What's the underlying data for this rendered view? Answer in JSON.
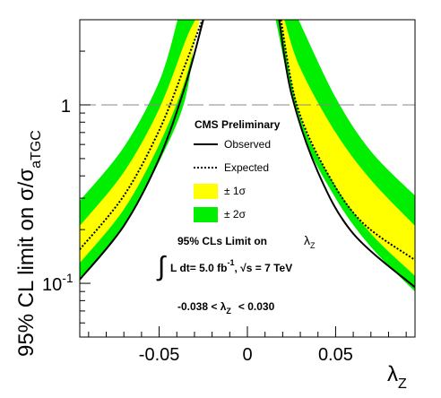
{
  "chart_data": {
    "type": "line",
    "x_axis": {
      "label_main": "λ",
      "label_sub": "Z",
      "range": [
        -0.095,
        0.095
      ],
      "ticks": [
        {
          "value": -0.05,
          "label": "-0.05"
        },
        {
          "value": 0,
          "label": "0"
        },
        {
          "value": 0.05,
          "label": "0.05"
        }
      ]
    },
    "y_axis": {
      "label_main": "95% CL limit on σ/σ",
      "label_sub": "aTGC",
      "scale": "log",
      "range": [
        0.05,
        3.0
      ],
      "ticks": [
        {
          "value": 1,
          "label": "1"
        },
        {
          "value": 0.1,
          "label_base": "10",
          "label_exp": "-1"
        }
      ]
    },
    "reference_line": {
      "y": 1,
      "style": "dashed",
      "color": "#888888"
    },
    "series": [
      {
        "name": "Observed",
        "style": "solid",
        "color": "#000000",
        "left": {
          "x": [
            -0.095,
            -0.07,
            -0.05,
            -0.035,
            -0.025
          ],
          "y": [
            0.105,
            0.21,
            0.5,
            1.3,
            3.0
          ]
        },
        "right": {
          "x": [
            0.018,
            0.025,
            0.04,
            0.06,
            0.095
          ],
          "y": [
            3.0,
            1.15,
            0.42,
            0.19,
            0.095
          ]
        }
      },
      {
        "name": "Expected",
        "style": "dashed",
        "color": "#000000",
        "left": {
          "x": [
            -0.095,
            -0.07,
            -0.05,
            -0.035,
            -0.0255
          ],
          "y": [
            0.155,
            0.31,
            0.72,
            1.7,
            3.0
          ]
        },
        "right": {
          "x": [
            0.019,
            0.028,
            0.045,
            0.065,
            0.095
          ],
          "y": [
            3.0,
            1.0,
            0.42,
            0.22,
            0.135
          ]
        }
      }
    ],
    "bands": {
      "sigma2": {
        "label": "± 2σ",
        "color": "#00ee00",
        "left": {
          "x": [
            -0.095,
            -0.07,
            -0.05,
            -0.035,
            -0.022
          ],
          "y_low": [
            0.105,
            0.21,
            0.48,
            1.1,
            3.0
          ],
          "y_high": [
            0.29,
            0.58,
            1.35,
            3.0,
            3.0
          ],
          "x_low_end": -0.029,
          "x_high_end": -0.0395
        },
        "right": {
          "x": [
            0.016,
            0.03,
            0.05,
            0.07,
            0.095
          ],
          "y_low": [
            3.0,
            0.75,
            0.3,
            0.16,
            0.09
          ],
          "y_high": [
            3.0,
            3.0,
            1.1,
            0.55,
            0.31
          ],
          "x_low_end": 0.016,
          "x_high_end": 0.029
        }
      },
      "sigma1": {
        "label": "± 1σ",
        "color": "#ffff00",
        "left": {
          "x": [
            -0.095,
            -0.07,
            -0.05,
            -0.035
          ],
          "y_low": [
            0.13,
            0.26,
            0.6,
            1.4
          ],
          "y_high": [
            0.21,
            0.42,
            0.95,
            2.3
          ],
          "x_low_end": -0.027,
          "x_high_end": -0.0295
        },
        "right": {
          "x": [
            0.03,
            0.05,
            0.07,
            0.095
          ],
          "y_low": [
            0.85,
            0.35,
            0.19,
            0.11
          ],
          "y_high": [
            1.6,
            0.7,
            0.38,
            0.21
          ],
          "x_low_end": 0.0185,
          "x_high_end": 0.021
        }
      }
    },
    "legend": {
      "position": "center",
      "title": "CMS Preliminary",
      "observed": "Observed",
      "expected": "Expected",
      "sigma1": "± 1σ",
      "sigma2": "± 2σ"
    },
    "annotations": {
      "limit_title": "95% CLs Limit on",
      "limit_param_main": "λ",
      "limit_param_sub": "Z",
      "lumi_integral": "∫",
      "lumi_text1": "L dt= 5.0 fb",
      "lumi_exp": "-1",
      "lumi_text2": ", √s = 7 TeV",
      "range_text1": "-0.038 < λ",
      "range_sub": "Z",
      "range_text2": "< 0.030"
    }
  }
}
